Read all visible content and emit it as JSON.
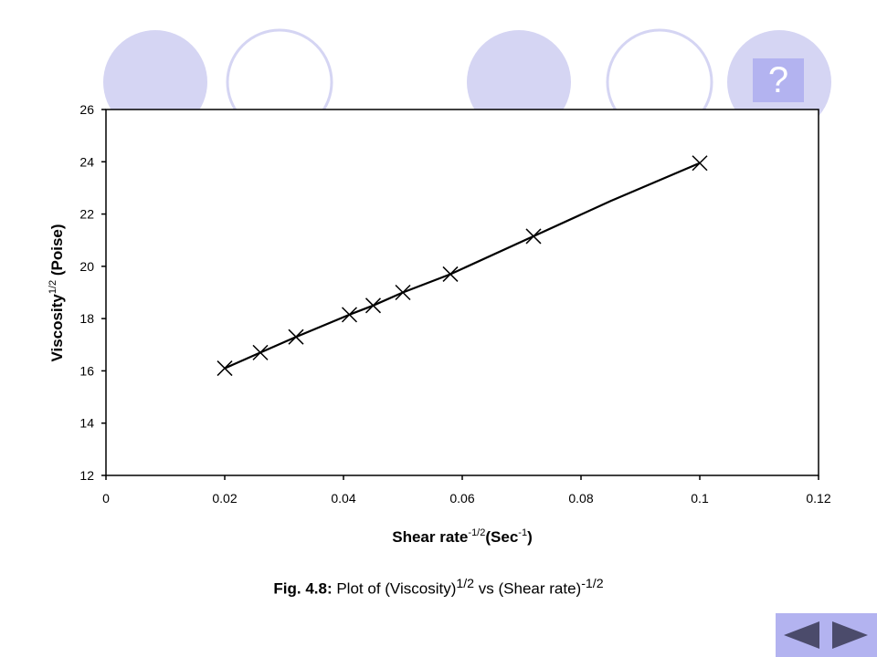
{
  "colors": {
    "circle_fill": "#d5d5f3",
    "circle_stroke": "#d5d5f3",
    "accent": "#b3b3f0",
    "nav_arrow": "#4b4b6b"
  },
  "header": {
    "circles": [
      {
        "style": "filled"
      },
      {
        "style": "outline"
      },
      {
        "style": "filled"
      },
      {
        "style": "outline"
      },
      {
        "style": "filled"
      }
    ],
    "help_label": "?",
    "help_icon": "question-icon"
  },
  "chart_data": {
    "type": "scatter",
    "title": "",
    "xlabel_main": "Shear rate",
    "xlabel_sup": "-1/2",
    "xlabel_unit_open": "(Sec",
    "xlabel_unit_sup": "-1",
    "xlabel_unit_close": ")",
    "ylabel_main": "Viscosity",
    "ylabel_sup": "1/2",
    "ylabel_unit": " (Poise)",
    "xlim": [
      0,
      0.12
    ],
    "ylim": [
      12,
      26
    ],
    "xticks": [
      "0",
      "0.02",
      "0.04",
      "0.06",
      "0.08",
      "0.1",
      "0.12"
    ],
    "yticks": [
      "12",
      "14",
      "16",
      "18",
      "20",
      "22",
      "24",
      "26"
    ],
    "marker": "x",
    "grid": false,
    "legend": "none",
    "points": [
      {
        "x": 0.02,
        "y": 16.1
      },
      {
        "x": 0.026,
        "y": 16.7
      },
      {
        "x": 0.032,
        "y": 17.3
      },
      {
        "x": 0.041,
        "y": 18.15
      },
      {
        "x": 0.045,
        "y": 18.5
      },
      {
        "x": 0.05,
        "y": 19.0
      },
      {
        "x": 0.058,
        "y": 19.7
      },
      {
        "x": 0.072,
        "y": 21.15
      },
      {
        "x": 0.1,
        "y": 23.95
      }
    ],
    "line": [
      {
        "x": 0.02,
        "y": 16.1
      },
      {
        "x": 0.026,
        "y": 16.7
      },
      {
        "x": 0.032,
        "y": 17.3
      },
      {
        "x": 0.041,
        "y": 18.15
      },
      {
        "x": 0.045,
        "y": 18.5
      },
      {
        "x": 0.05,
        "y": 19.0
      },
      {
        "x": 0.058,
        "y": 19.7
      },
      {
        "x": 0.072,
        "y": 21.15
      },
      {
        "x": 0.085,
        "y": 22.5
      },
      {
        "x": 0.1,
        "y": 23.95
      }
    ]
  },
  "caption": {
    "prefix": "Fig. 4.8:",
    "text1": " Plot of (Viscosity)",
    "sup1": "1/2",
    "text2": " vs (Shear rate)",
    "sup2": "-1/2"
  },
  "nav": {
    "prev_icon": "left-triangle-icon",
    "next_icon": "right-triangle-icon"
  }
}
